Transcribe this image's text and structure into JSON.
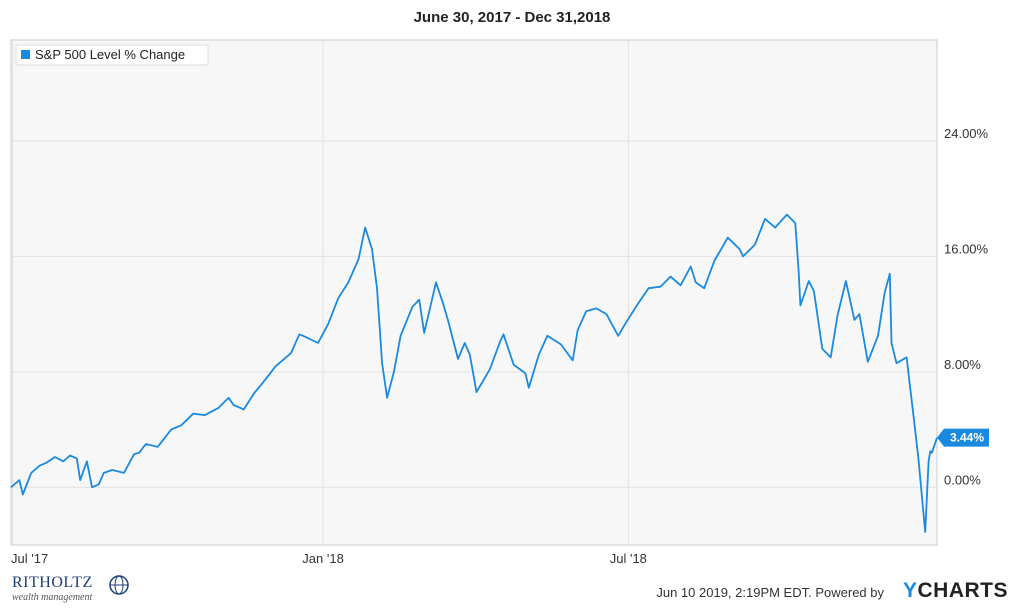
{
  "chart_data": {
    "type": "line",
    "title": "June 30, 2017 - Dec 31,2018",
    "x_tick_labels": [
      "Jul '17",
      "Jan '18",
      "Jul '18"
    ],
    "y_tick_labels": [
      "24.00%",
      "16.00%",
      "8.00%",
      "0.00%"
    ],
    "y_ticks": [
      24,
      16,
      8,
      0
    ],
    "ylim": [
      -4,
      31
    ],
    "x_range": [
      "2017-06-30",
      "2018-12-31"
    ],
    "x_ticks": [
      "2017-07-01",
      "2018-01-01",
      "2018-07-01"
    ],
    "grid": true,
    "legend_position": "top-left",
    "series_color": "#1a8ae0",
    "last_value_label": "3.44%",
    "series": [
      {
        "name": "S&P 500 Level % Change",
        "points": [
          [
            "2017-06-30",
            0.0
          ],
          [
            "2017-07-05",
            0.5
          ],
          [
            "2017-07-07",
            -0.5
          ],
          [
            "2017-07-12",
            1.0
          ],
          [
            "2017-07-17",
            1.5
          ],
          [
            "2017-07-21",
            1.7
          ],
          [
            "2017-07-26",
            2.1
          ],
          [
            "2017-07-31",
            1.8
          ],
          [
            "2017-08-04",
            2.2
          ],
          [
            "2017-08-08",
            2.0
          ],
          [
            "2017-08-10",
            0.5
          ],
          [
            "2017-08-14",
            1.8
          ],
          [
            "2017-08-17",
            0.0
          ],
          [
            "2017-08-21",
            0.2
          ],
          [
            "2017-08-24",
            1.0
          ],
          [
            "2017-08-29",
            1.2
          ],
          [
            "2017-09-05",
            1.0
          ],
          [
            "2017-09-11",
            2.3
          ],
          [
            "2017-09-14",
            2.4
          ],
          [
            "2017-09-18",
            3.0
          ],
          [
            "2017-09-25",
            2.8
          ],
          [
            "2017-09-29",
            3.4
          ],
          [
            "2017-10-03",
            4.0
          ],
          [
            "2017-10-09",
            4.3
          ],
          [
            "2017-10-16",
            5.1
          ],
          [
            "2017-10-23",
            5.0
          ],
          [
            "2017-10-31",
            5.5
          ],
          [
            "2017-11-06",
            6.2
          ],
          [
            "2017-11-09",
            5.7
          ],
          [
            "2017-11-15",
            5.4
          ],
          [
            "2017-11-21",
            6.5
          ],
          [
            "2017-11-28",
            7.5
          ],
          [
            "2017-12-04",
            8.4
          ],
          [
            "2017-12-08",
            8.8
          ],
          [
            "2017-12-13",
            9.3
          ],
          [
            "2017-12-18",
            10.6
          ],
          [
            "2017-12-22",
            10.4
          ],
          [
            "2017-12-29",
            10.0
          ],
          [
            "2018-01-04",
            11.3
          ],
          [
            "2018-01-10",
            13.1
          ],
          [
            "2018-01-16",
            14.2
          ],
          [
            "2018-01-22",
            15.8
          ],
          [
            "2018-01-26",
            18.0
          ],
          [
            "2018-01-30",
            16.5
          ],
          [
            "2018-02-02",
            13.8
          ],
          [
            "2018-02-05",
            8.6
          ],
          [
            "2018-02-08",
            6.2
          ],
          [
            "2018-02-12",
            8.0
          ],
          [
            "2018-02-16",
            10.5
          ],
          [
            "2018-02-23",
            12.5
          ],
          [
            "2018-02-27",
            13.0
          ],
          [
            "2018-03-02",
            10.7
          ],
          [
            "2018-03-09",
            14.2
          ],
          [
            "2018-03-13",
            12.8
          ],
          [
            "2018-03-16",
            11.6
          ],
          [
            "2018-03-22",
            8.9
          ],
          [
            "2018-03-26",
            10.0
          ],
          [
            "2018-03-29",
            9.2
          ],
          [
            "2018-04-02",
            6.6
          ],
          [
            "2018-04-06",
            7.4
          ],
          [
            "2018-04-10",
            8.2
          ],
          [
            "2018-04-16",
            10.1
          ],
          [
            "2018-04-18",
            10.6
          ],
          [
            "2018-04-24",
            8.5
          ],
          [
            "2018-05-01",
            7.9
          ],
          [
            "2018-05-03",
            6.9
          ],
          [
            "2018-05-09",
            9.2
          ],
          [
            "2018-05-14",
            10.5
          ],
          [
            "2018-05-22",
            9.9
          ],
          [
            "2018-05-29",
            8.8
          ],
          [
            "2018-06-01",
            10.9
          ],
          [
            "2018-06-06",
            12.2
          ],
          [
            "2018-06-12",
            12.4
          ],
          [
            "2018-06-18",
            12.0
          ],
          [
            "2018-06-25",
            10.5
          ],
          [
            "2018-06-29",
            11.3
          ],
          [
            "2018-07-06",
            12.6
          ],
          [
            "2018-07-13",
            13.8
          ],
          [
            "2018-07-20",
            13.9
          ],
          [
            "2018-07-26",
            14.6
          ],
          [
            "2018-08-01",
            14.0
          ],
          [
            "2018-08-07",
            15.3
          ],
          [
            "2018-08-10",
            14.2
          ],
          [
            "2018-08-15",
            13.8
          ],
          [
            "2018-08-21",
            15.7
          ],
          [
            "2018-08-29",
            17.3
          ],
          [
            "2018-09-05",
            16.5
          ],
          [
            "2018-09-07",
            16.0
          ],
          [
            "2018-09-14",
            16.8
          ],
          [
            "2018-09-20",
            18.6
          ],
          [
            "2018-09-26",
            18.0
          ],
          [
            "2018-10-03",
            18.9
          ],
          [
            "2018-10-08",
            18.3
          ],
          [
            "2018-10-10",
            14.9
          ],
          [
            "2018-10-11",
            12.6
          ],
          [
            "2018-10-16",
            14.3
          ],
          [
            "2018-10-19",
            13.6
          ],
          [
            "2018-10-24",
            9.6
          ],
          [
            "2018-10-29",
            9.0
          ],
          [
            "2018-11-02",
            11.9
          ],
          [
            "2018-11-07",
            14.3
          ],
          [
            "2018-11-12",
            11.6
          ],
          [
            "2018-11-15",
            12.0
          ],
          [
            "2018-11-20",
            8.7
          ],
          [
            "2018-11-26",
            10.5
          ],
          [
            "2018-11-30",
            13.5
          ],
          [
            "2018-12-03",
            14.8
          ],
          [
            "2018-12-04",
            10.0
          ],
          [
            "2018-12-07",
            8.6
          ],
          [
            "2018-12-13",
            9.0
          ],
          [
            "2018-12-17",
            5.0
          ],
          [
            "2018-12-20",
            2.0
          ],
          [
            "2018-12-24",
            -3.1
          ],
          [
            "2018-12-26",
            1.8
          ],
          [
            "2018-12-27",
            2.5
          ],
          [
            "2018-12-28",
            2.4
          ],
          [
            "2018-12-31",
            3.44
          ]
        ]
      }
    ]
  },
  "footer": {
    "timestamp": "Jun 10 2019, 2:19PM EDT.  Powered by",
    "ycharts_y": "Y",
    "ycharts_rest": "CHARTS"
  },
  "ritholtz": {
    "name": "RITHOLTZ",
    "tagline": "wealth management"
  }
}
